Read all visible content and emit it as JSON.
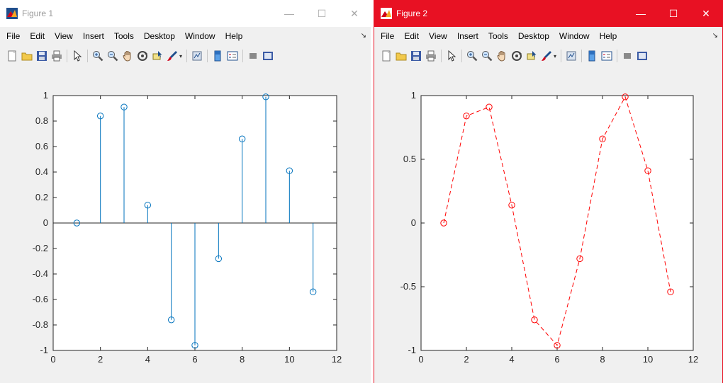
{
  "windows": [
    {
      "title": "Figure 1",
      "menu": [
        "File",
        "Edit",
        "View",
        "Insert",
        "Tools",
        "Desktop",
        "Window",
        "Help"
      ],
      "toolbar_icons": [
        "new-figure-icon",
        "open-icon",
        "save-icon",
        "print-icon",
        "pointer-icon",
        "zoom-in-icon",
        "zoom-out-icon",
        "pan-icon",
        "rotate-3d-icon",
        "data-cursor-icon",
        "brush-icon",
        "link-plot-icon",
        "insert-colorbar-icon",
        "insert-legend-icon",
        "hide-plot-tools-icon",
        "show-plot-tools-icon"
      ],
      "controls": {
        "minimize": "—",
        "maximize": "☐",
        "close": "✕"
      }
    },
    {
      "title": "Figure 2",
      "menu": [
        "File",
        "Edit",
        "View",
        "Insert",
        "Tools",
        "Desktop",
        "Window",
        "Help"
      ],
      "toolbar_icons": [
        "new-figure-icon",
        "open-icon",
        "save-icon",
        "print-icon",
        "pointer-icon",
        "zoom-in-icon",
        "zoom-out-icon",
        "pan-icon",
        "rotate-3d-icon",
        "data-cursor-icon",
        "brush-icon",
        "link-plot-icon",
        "insert-colorbar-icon",
        "insert-legend-icon",
        "hide-plot-tools-icon",
        "show-plot-tools-icon"
      ],
      "controls": {
        "minimize": "—",
        "maximize": "☐",
        "close": "✕"
      }
    }
  ],
  "colors": {
    "active_title": "#e81123",
    "stem": "#0072bd",
    "line": "#ff0000"
  },
  "chart_data": [
    {
      "type": "scatter",
      "style": "stem",
      "x": [
        1,
        2,
        3,
        4,
        5,
        6,
        7,
        8,
        9,
        10,
        11
      ],
      "y": [
        0,
        0.84,
        0.91,
        0.14,
        -0.76,
        -0.96,
        -0.28,
        0.66,
        0.99,
        0.41,
        -0.54
      ],
      "xlim": [
        0,
        12
      ],
      "ylim": [
        -1,
        1
      ],
      "xticks": [
        0,
        2,
        4,
        6,
        8,
        10,
        12
      ],
      "yticks": [
        -1,
        -0.8,
        -0.6,
        -0.4,
        -0.2,
        0,
        0.2,
        0.4,
        0.6,
        0.8,
        1
      ],
      "xtick_labels": [
        "0",
        "2",
        "4",
        "6",
        "8",
        "10",
        "12"
      ],
      "ytick_labels": [
        "-1",
        "-0.8",
        "-0.6",
        "-0.4",
        "-0.2",
        "0",
        "0.2",
        "0.4",
        "0.6",
        "0.8",
        "1"
      ],
      "marker": "o",
      "color": "#0072bd",
      "grid": false
    },
    {
      "type": "line",
      "style": "dashed",
      "x": [
        1,
        2,
        3,
        4,
        5,
        6,
        7,
        8,
        9,
        10,
        11
      ],
      "y": [
        0,
        0.84,
        0.91,
        0.14,
        -0.76,
        -0.96,
        -0.28,
        0.66,
        0.99,
        0.41,
        -0.54
      ],
      "xlim": [
        0,
        12
      ],
      "ylim": [
        -1,
        1
      ],
      "xticks": [
        0,
        2,
        4,
        6,
        8,
        10,
        12
      ],
      "yticks": [
        -1,
        -0.5,
        0,
        0.5,
        1
      ],
      "xtick_labels": [
        "0",
        "2",
        "4",
        "6",
        "8",
        "10",
        "12"
      ],
      "ytick_labels": [
        "-1",
        "-0.5",
        "0",
        "0.5",
        "1"
      ],
      "marker": "o",
      "color": "#ff0000",
      "grid": false
    }
  ]
}
